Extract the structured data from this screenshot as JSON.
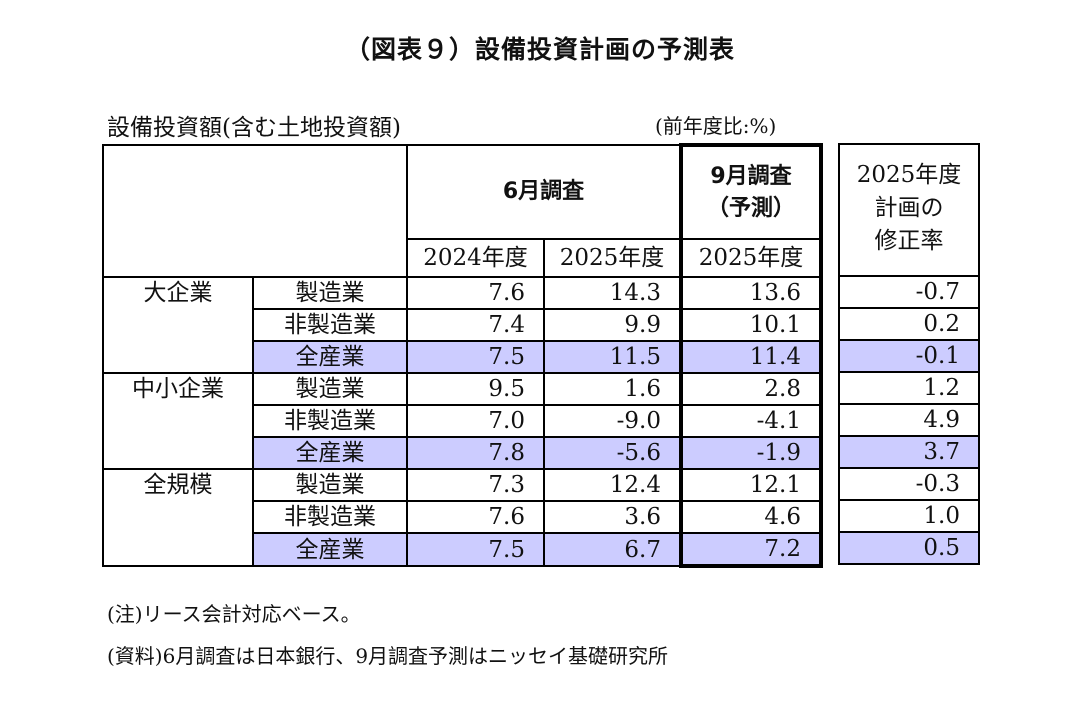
{
  "title": "（図表９）設備投資計画の予測表",
  "caption": {
    "left": "設備投資額(含む土地投資額)",
    "unit": "(前年度比:%)"
  },
  "headers": {
    "june_survey": "6月調査",
    "sept_survey_line1": "9月調査",
    "sept_survey_line2": "（予測）",
    "fy2024": "2024年度",
    "fy2025a": "2025年度",
    "fy2025b": "2025年度",
    "revision_line1": "2025年度",
    "revision_line2": "計画の",
    "revision_line3": "修正率"
  },
  "groups": [
    {
      "name": "大企業",
      "rows": [
        {
          "industry": "製造業",
          "june_2024": "7.6",
          "june_2025": "14.3",
          "sept_2025": "13.6",
          "revision": "-0.7",
          "highlight": false
        },
        {
          "industry": "非製造業",
          "june_2024": "7.4",
          "june_2025": "9.9",
          "sept_2025": "10.1",
          "revision": "0.2",
          "highlight": false
        },
        {
          "industry": "全産業",
          "june_2024": "7.5",
          "june_2025": "11.5",
          "sept_2025": "11.4",
          "revision": "-0.1",
          "highlight": true
        }
      ]
    },
    {
      "name": "中小企業",
      "rows": [
        {
          "industry": "製造業",
          "june_2024": "9.5",
          "june_2025": "1.6",
          "sept_2025": "2.8",
          "revision": "1.2",
          "highlight": false
        },
        {
          "industry": "非製造業",
          "june_2024": "7.0",
          "june_2025": "-9.0",
          "sept_2025": "-4.1",
          "revision": "4.9",
          "highlight": false
        },
        {
          "industry": "全産業",
          "june_2024": "7.8",
          "june_2025": "-5.6",
          "sept_2025": "-1.9",
          "revision": "3.7",
          "highlight": true
        }
      ]
    },
    {
      "name": "全規模",
      "rows": [
        {
          "industry": "製造業",
          "june_2024": "7.3",
          "june_2025": "12.4",
          "sept_2025": "12.1",
          "revision": "-0.3",
          "highlight": false
        },
        {
          "industry": "非製造業",
          "june_2024": "7.6",
          "june_2025": "3.6",
          "sept_2025": "4.6",
          "revision": "1.0",
          "highlight": false
        },
        {
          "industry": "全産業",
          "june_2024": "7.5",
          "june_2025": "6.7",
          "sept_2025": "7.2",
          "revision": "0.5",
          "highlight": true
        }
      ]
    }
  ],
  "notes": {
    "note": "(注)リース会計対応ベース。",
    "source": "(資料)6月調査は日本銀行、9月調査予測はニッセイ基礎研究所"
  },
  "colors": {
    "highlight": "#ccccff",
    "border": "#000000"
  }
}
